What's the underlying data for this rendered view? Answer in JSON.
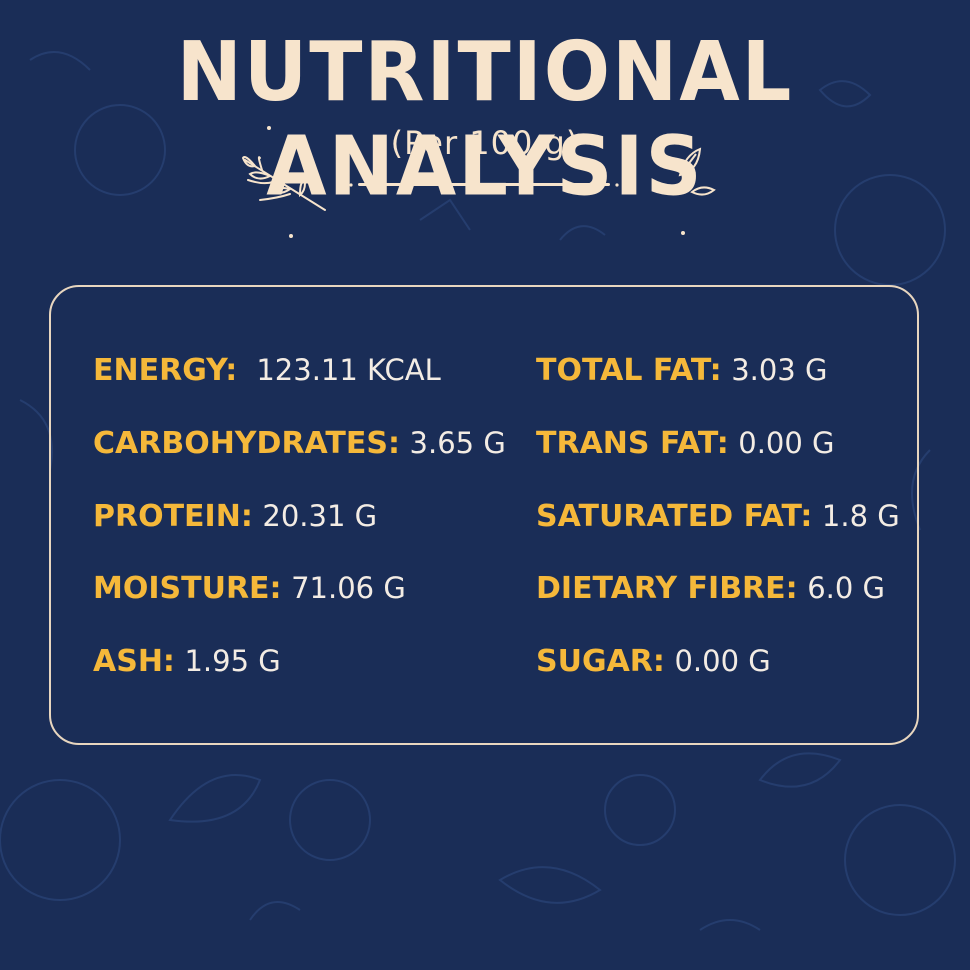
{
  "header": {
    "title": "NUTRITIONAL ANALYSIS",
    "subtitle": "(Per 100 g)"
  },
  "nutrients": {
    "energy": {
      "label": "ENERGY:",
      "value": "123.11 KCAL"
    },
    "carbohydrates": {
      "label": "CARBOHYDRATES:",
      "value": "3.65 G"
    },
    "protein": {
      "label": "PROTEIN:",
      "value": "20.31 G"
    },
    "moisture": {
      "label": "MOISTURE:",
      "value": "71.06 G"
    },
    "ash": {
      "label": "ASH:",
      "value": "1.95 G"
    },
    "total_fat": {
      "label": "TOTAL FAT:",
      "value": "3.03 G"
    },
    "trans_fat": {
      "label": "TRANS FAT:",
      "value": "0.00 G"
    },
    "saturated_fat": {
      "label": "SATURATED FAT:",
      "value": "1.8 G"
    },
    "dietary_fibre": {
      "label": "DIETARY FIBRE:",
      "value": "6.0 G"
    },
    "sugar": {
      "label": "SUGAR:",
      "value": "0.00 G"
    }
  },
  "colors": {
    "background": "#1a2d57",
    "title": "#f7e4cc",
    "label": "#f5b83a",
    "value": "#f3ece4"
  },
  "icons": [
    "leaf-sprig-icon",
    "leaf-pair-icon",
    "food-doodle-pattern"
  ]
}
